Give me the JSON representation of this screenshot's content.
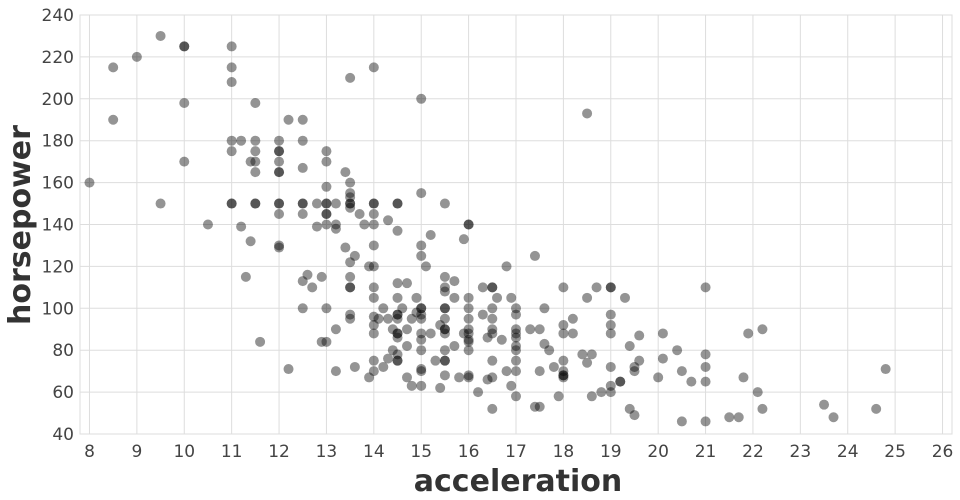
{
  "chart_data": {
    "type": "scatter",
    "xlabel": "acceleration",
    "ylabel": "horsepower",
    "xlim": [
      7.8,
      26.2
    ],
    "ylim": [
      40,
      240
    ],
    "x_ticks": [
      "8",
      "9",
      "10",
      "11",
      "12",
      "13",
      "14",
      "15",
      "16",
      "17",
      "18",
      "19",
      "20",
      "21",
      "22",
      "23",
      "24",
      "25",
      "26"
    ],
    "y_ticks": [
      "40",
      "60",
      "80",
      "100",
      "120",
      "140",
      "160",
      "180",
      "200",
      "220",
      "240"
    ],
    "grid": true,
    "point_color": "#000000",
    "points": [
      [
        8.0,
        160
      ],
      [
        8.5,
        215
      ],
      [
        8.5,
        190
      ],
      [
        9.0,
        220
      ],
      [
        9.5,
        230
      ],
      [
        9.5,
        150
      ],
      [
        10.0,
        225
      ],
      [
        10.0,
        225
      ],
      [
        10.0,
        198
      ],
      [
        10.0,
        170
      ],
      [
        10.5,
        140
      ],
      [
        11.0,
        225
      ],
      [
        11.0,
        215
      ],
      [
        11.0,
        208
      ],
      [
        11.0,
        180
      ],
      [
        11.0,
        175
      ],
      [
        11.0,
        150
      ],
      [
        11.0,
        150
      ],
      [
        11.2,
        180
      ],
      [
        11.2,
        139
      ],
      [
        11.3,
        115
      ],
      [
        11.4,
        170
      ],
      [
        11.4,
        132
      ],
      [
        11.5,
        198
      ],
      [
        11.5,
        180
      ],
      [
        11.5,
        175
      ],
      [
        11.5,
        170
      ],
      [
        11.5,
        165
      ],
      [
        11.5,
        150
      ],
      [
        11.5,
        150
      ],
      [
        11.6,
        84
      ],
      [
        12.0,
        180
      ],
      [
        12.0,
        175
      ],
      [
        12.0,
        175
      ],
      [
        12.0,
        170
      ],
      [
        12.0,
        165
      ],
      [
        12.0,
        165
      ],
      [
        12.0,
        150
      ],
      [
        12.0,
        150
      ],
      [
        12.0,
        145
      ],
      [
        12.0,
        130
      ],
      [
        12.0,
        129
      ],
      [
        12.2,
        190
      ],
      [
        12.2,
        71
      ],
      [
        12.5,
        190
      ],
      [
        12.5,
        180
      ],
      [
        12.5,
        167
      ],
      [
        12.5,
        150
      ],
      [
        12.5,
        150
      ],
      [
        12.5,
        145
      ],
      [
        12.5,
        113
      ],
      [
        12.5,
        100
      ],
      [
        12.6,
        116
      ],
      [
        12.7,
        110
      ],
      [
        12.8,
        150
      ],
      [
        12.8,
        139
      ],
      [
        12.9,
        115
      ],
      [
        12.9,
        84
      ],
      [
        13.0,
        175
      ],
      [
        13.0,
        170
      ],
      [
        13.0,
        158
      ],
      [
        13.0,
        150
      ],
      [
        13.0,
        150
      ],
      [
        13.0,
        145
      ],
      [
        13.0,
        145
      ],
      [
        13.0,
        140
      ],
      [
        13.0,
        100
      ],
      [
        13.0,
        84
      ],
      [
        13.2,
        150
      ],
      [
        13.2,
        140
      ],
      [
        13.2,
        138
      ],
      [
        13.2,
        90
      ],
      [
        13.2,
        70
      ],
      [
        13.4,
        165
      ],
      [
        13.4,
        129
      ],
      [
        13.5,
        160
      ],
      [
        13.5,
        155
      ],
      [
        13.5,
        153
      ],
      [
        13.5,
        150
      ],
      [
        13.5,
        150
      ],
      [
        13.5,
        148
      ],
      [
        13.5,
        122
      ],
      [
        13.5,
        115
      ],
      [
        13.5,
        110
      ],
      [
        13.5,
        110
      ],
      [
        13.5,
        97
      ],
      [
        13.5,
        95
      ],
      [
        13.5,
        210
      ],
      [
        13.6,
        125
      ],
      [
        13.6,
        72
      ],
      [
        13.7,
        145
      ],
      [
        13.8,
        140
      ],
      [
        13.9,
        120
      ],
      [
        13.9,
        67
      ],
      [
        14.0,
        215
      ],
      [
        14.0,
        150
      ],
      [
        14.0,
        150
      ],
      [
        14.0,
        145
      ],
      [
        14.0,
        140
      ],
      [
        14.0,
        130
      ],
      [
        14.0,
        120
      ],
      [
        14.0,
        110
      ],
      [
        14.0,
        105
      ],
      [
        14.0,
        96
      ],
      [
        14.0,
        92
      ],
      [
        14.0,
        88
      ],
      [
        14.0,
        75
      ],
      [
        14.0,
        70
      ],
      [
        14.1,
        95
      ],
      [
        14.2,
        100
      ],
      [
        14.2,
        72
      ],
      [
        14.3,
        95
      ],
      [
        14.3,
        76
      ],
      [
        14.3,
        142
      ],
      [
        14.4,
        90
      ],
      [
        14.4,
        80
      ],
      [
        14.5,
        150
      ],
      [
        14.5,
        150
      ],
      [
        14.5,
        137
      ],
      [
        14.5,
        112
      ],
      [
        14.5,
        105
      ],
      [
        14.5,
        97
      ],
      [
        14.5,
        97
      ],
      [
        14.5,
        95
      ],
      [
        14.5,
        88
      ],
      [
        14.5,
        88
      ],
      [
        14.5,
        86
      ],
      [
        14.5,
        78
      ],
      [
        14.5,
        75
      ],
      [
        14.5,
        75
      ],
      [
        14.6,
        100
      ],
      [
        14.7,
        112
      ],
      [
        14.7,
        90
      ],
      [
        14.7,
        82
      ],
      [
        14.7,
        67
      ],
      [
        14.8,
        95
      ],
      [
        14.8,
        63
      ],
      [
        14.9,
        105
      ],
      [
        14.9,
        98
      ],
      [
        15.0,
        200
      ],
      [
        15.0,
        155
      ],
      [
        15.0,
        130
      ],
      [
        15.0,
        125
      ],
      [
        15.0,
        100
      ],
      [
        15.0,
        100
      ],
      [
        15.0,
        97
      ],
      [
        15.0,
        95
      ],
      [
        15.0,
        88
      ],
      [
        15.0,
        85
      ],
      [
        15.0,
        80
      ],
      [
        15.0,
        71
      ],
      [
        15.0,
        70
      ],
      [
        15.0,
        63
      ],
      [
        15.1,
        120
      ],
      [
        15.2,
        135
      ],
      [
        15.2,
        88
      ],
      [
        15.3,
        75
      ],
      [
        15.4,
        62
      ],
      [
        15.4,
        92
      ],
      [
        15.5,
        150
      ],
      [
        15.5,
        115
      ],
      [
        15.5,
        110
      ],
      [
        15.5,
        108
      ],
      [
        15.5,
        100
      ],
      [
        15.5,
        100
      ],
      [
        15.5,
        95
      ],
      [
        15.5,
        90
      ],
      [
        15.5,
        90
      ],
      [
        15.5,
        88
      ],
      [
        15.5,
        80
      ],
      [
        15.5,
        75
      ],
      [
        15.5,
        75
      ],
      [
        15.5,
        68
      ],
      [
        15.7,
        113
      ],
      [
        15.7,
        105
      ],
      [
        15.7,
        82
      ],
      [
        15.8,
        67
      ],
      [
        15.9,
        133
      ],
      [
        15.9,
        88
      ],
      [
        16.0,
        140
      ],
      [
        16.0,
        140
      ],
      [
        16.0,
        105
      ],
      [
        16.0,
        100
      ],
      [
        16.0,
        95
      ],
      [
        16.0,
        90
      ],
      [
        16.0,
        88
      ],
      [
        16.0,
        85
      ],
      [
        16.0,
        84
      ],
      [
        16.0,
        80
      ],
      [
        16.0,
        68
      ],
      [
        16.0,
        67
      ],
      [
        16.2,
        60
      ],
      [
        16.3,
        110
      ],
      [
        16.3,
        97
      ],
      [
        16.4,
        66
      ],
      [
        16.4,
        86
      ],
      [
        16.5,
        110
      ],
      [
        16.5,
        110
      ],
      [
        16.5,
        100
      ],
      [
        16.5,
        95
      ],
      [
        16.5,
        90
      ],
      [
        16.5,
        88
      ],
      [
        16.5,
        75
      ],
      [
        16.5,
        67
      ],
      [
        16.5,
        52
      ],
      [
        16.6,
        105
      ],
      [
        16.7,
        85
      ],
      [
        16.8,
        120
      ],
      [
        16.8,
        70
      ],
      [
        16.9,
        105
      ],
      [
        16.9,
        63
      ],
      [
        17.0,
        100
      ],
      [
        17.0,
        97
      ],
      [
        17.0,
        90
      ],
      [
        17.0,
        88
      ],
      [
        17.0,
        86
      ],
      [
        17.0,
        82
      ],
      [
        17.0,
        80
      ],
      [
        17.0,
        75
      ],
      [
        17.0,
        70
      ],
      [
        17.0,
        58
      ],
      [
        17.3,
        90
      ],
      [
        17.4,
        53
      ],
      [
        17.4,
        125
      ],
      [
        17.5,
        90
      ],
      [
        17.5,
        70
      ],
      [
        17.5,
        53
      ],
      [
        17.6,
        100
      ],
      [
        17.6,
        83
      ],
      [
        17.7,
        80
      ],
      [
        17.8,
        72
      ],
      [
        17.9,
        58
      ],
      [
        18.0,
        110
      ],
      [
        18.0,
        92
      ],
      [
        18.0,
        88
      ],
      [
        18.0,
        75
      ],
      [
        18.0,
        70
      ],
      [
        18.0,
        68
      ],
      [
        18.0,
        68
      ],
      [
        18.0,
        67
      ],
      [
        18.2,
        95
      ],
      [
        18.2,
        88
      ],
      [
        18.4,
        78
      ],
      [
        18.5,
        193
      ],
      [
        18.5,
        105
      ],
      [
        18.5,
        74
      ],
      [
        18.6,
        78
      ],
      [
        18.6,
        58
      ],
      [
        18.7,
        110
      ],
      [
        18.8,
        60
      ],
      [
        19.0,
        110
      ],
      [
        19.0,
        110
      ],
      [
        19.0,
        97
      ],
      [
        19.0,
        92
      ],
      [
        19.0,
        88
      ],
      [
        19.0,
        72
      ],
      [
        19.0,
        63
      ],
      [
        19.0,
        60
      ],
      [
        19.2,
        65
      ],
      [
        19.2,
        65
      ],
      [
        19.3,
        105
      ],
      [
        19.4,
        82
      ],
      [
        19.4,
        52
      ],
      [
        19.5,
        72
      ],
      [
        19.5,
        70
      ],
      [
        19.5,
        49
      ],
      [
        19.6,
        75
      ],
      [
        19.6,
        87
      ],
      [
        20.0,
        67
      ],
      [
        20.1,
        88
      ],
      [
        20.1,
        76
      ],
      [
        20.4,
        80
      ],
      [
        20.5,
        46
      ],
      [
        20.5,
        70
      ],
      [
        20.7,
        65
      ],
      [
        21.0,
        110
      ],
      [
        21.0,
        78
      ],
      [
        21.0,
        72
      ],
      [
        21.0,
        65
      ],
      [
        21.0,
        46
      ],
      [
        21.5,
        48
      ],
      [
        21.7,
        48
      ],
      [
        21.8,
        67
      ],
      [
        21.9,
        88
      ],
      [
        22.1,
        60
      ],
      [
        22.2,
        90
      ],
      [
        22.2,
        52
      ],
      [
        23.5,
        54
      ],
      [
        23.7,
        48
      ],
      [
        24.6,
        52
      ],
      [
        24.8,
        71
      ]
    ]
  }
}
